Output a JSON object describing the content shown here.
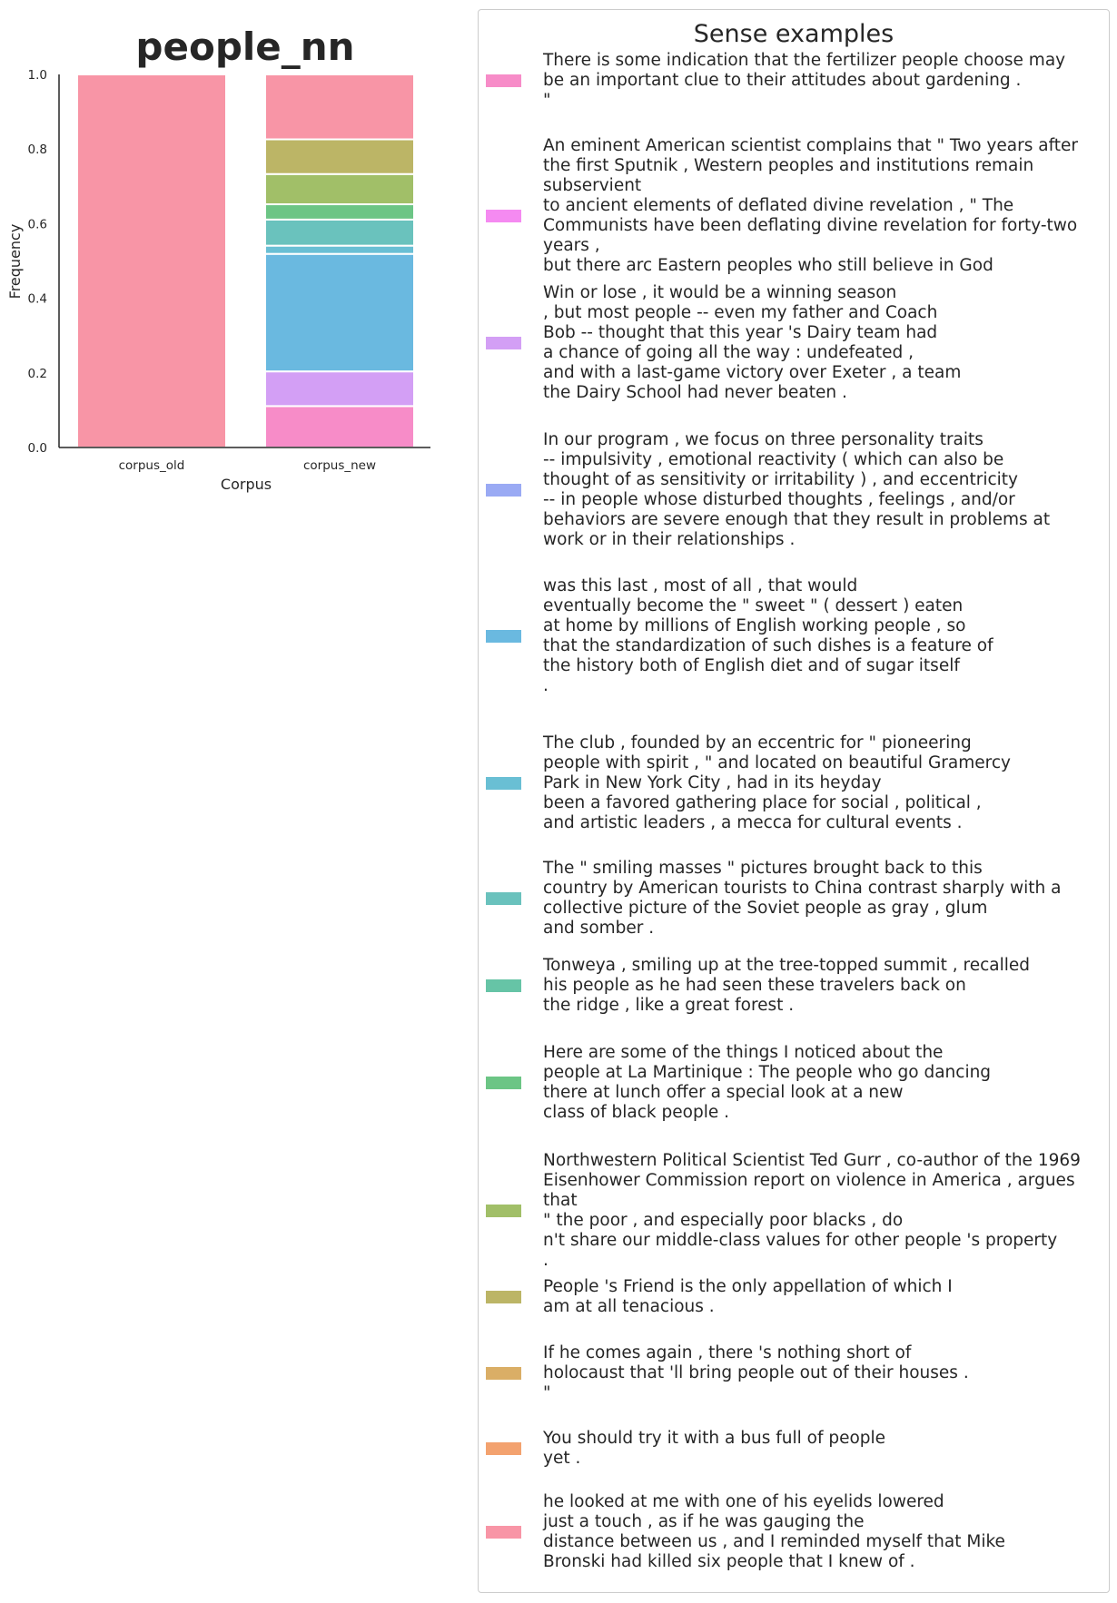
{
  "chart_data": {
    "type": "bar",
    "stacked": true,
    "title": "people_nn",
    "xlabel": "Corpus",
    "ylabel": "Frequency",
    "ylim": [
      0,
      1.0
    ],
    "yticks": [
      "0.0",
      "0.2",
      "0.4",
      "0.6",
      "0.8",
      "1.0"
    ],
    "categories": [
      "corpus_old",
      "corpus_new"
    ],
    "grid": false,
    "legend_title": "Sense examples",
    "legend_placement": "right",
    "series": [
      {
        "color": "#f78cc8",
        "values": [
          0,
          0.111
        ]
      },
      {
        "color": "#f58af1",
        "values": [
          0,
          0
        ]
      },
      {
        "color": "#d39ff5",
        "values": [
          0,
          0.093
        ]
      },
      {
        "color": "#9aaaf4",
        "values": [
          0,
          0
        ]
      },
      {
        "color": "#6ab9e0",
        "values": [
          0,
          0.315
        ]
      },
      {
        "color": "#69bfd4",
        "values": [
          0,
          0.022
        ]
      },
      {
        "color": "#6ac2bd",
        "values": [
          0,
          0.07
        ]
      },
      {
        "color": "#66c4a6",
        "values": [
          0,
          0
        ]
      },
      {
        "color": "#6cc585",
        "values": [
          0,
          0.041
        ]
      },
      {
        "color": "#a1bf68",
        "values": [
          0,
          0.081
        ]
      },
      {
        "color": "#bcb566",
        "values": [
          0,
          0.093
        ]
      },
      {
        "color": "#daae66",
        "values": [
          0,
          0
        ]
      },
      {
        "color": "#f3a26f",
        "values": [
          0,
          0
        ]
      },
      {
        "color": "#f895a6",
        "values": [
          1.0,
          0.174
        ]
      }
    ]
  },
  "legend": {
    "title": "Sense examples",
    "entries": [
      "There is some indication that the fertilizer people choose may\nbe an important clue to their attitudes about gardening .\n\"",
      "An eminent American scientist complains that \" Two years after\nthe first Sputnik , Western peoples and institutions remain subservient\nto ancient elements of deflated divine revelation , \" The\nCommunists have been deflating divine revelation for forty-two years ,\nbut there arc Eastern peoples who still believe in God\n.",
      "Win or lose , it would be a winning season\n, but most people -- even my father and Coach\nBob -- thought that this year 's Dairy team had\na chance of going all the way : undefeated ,\nand with a last-game victory over Exeter , a team\nthe Dairy School had never beaten .",
      "In our program , we focus on three personality traits\n-- impulsivity , emotional reactivity ( which can also be\nthought of as sensitivity or irritability ) , and eccentricity\n-- in people whose disturbed thoughts , feelings , and/or\nbehaviors are severe enough that they result in problems at\nwork or in their relationships .",
      "was this last , most of all , that would\neventually become the \" sweet \" ( dessert ) eaten\nat home by millions of English working people , so\nthat the standardization of such dishes is a feature of\nthe history both of English diet and of sugar itself\n.",
      "The club , founded by an eccentric for \" pioneering\npeople with spirit , \" and located on beautiful Gramercy\nPark in New York City , had in its heyday\nbeen a favored gathering place for social , political ,\nand artistic leaders , a mecca for cultural events .",
      "The \" smiling masses \" pictures brought back to this\ncountry by American tourists to China contrast sharply with a\ncollective picture of the Soviet people as gray , glum\nand somber .",
      "Tonweya , smiling up at the tree-topped summit , recalled\nhis people as he had seen these travelers back on\nthe ridge , like a great forest .",
      "Here are some of the things I noticed about the\npeople at La Martinique : The people who go dancing\nthere at lunch offer a special look at a new\nclass of black people .",
      "Northwestern Political Scientist Ted Gurr , co-author of the 1969\nEisenhower Commission report on violence in America , argues that\n\" the poor , and especially poor blacks , do\nn't share our middle-class values for other people 's property\n.",
      "People 's Friend is the only appellation of which I\nam at all tenacious .",
      "If he comes again , there 's nothing short of\nholocaust that 'll bring people out of their houses .\n\"",
      "You should try it with a bus full of people\nyet .",
      "he looked at me with one of his eyelids lowered\njust a touch , as if he was gauging the\ndistance between us , and I reminded myself that Mike\nBronski had killed six people that I knew of ."
    ]
  }
}
